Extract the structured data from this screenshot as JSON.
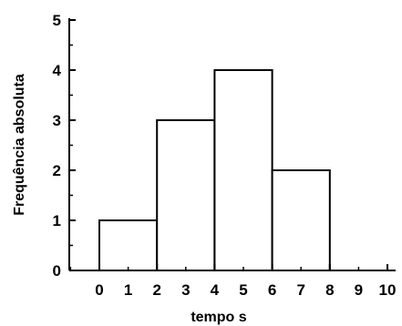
{
  "chart_data": {
    "type": "bar",
    "xlabel": "tempo s",
    "ylabel": "Frequência absoluta",
    "bins": [
      {
        "start": 0,
        "end": 2,
        "value": 1
      },
      {
        "start": 2,
        "end": 4,
        "value": 3
      },
      {
        "start": 4,
        "end": 6,
        "value": 4
      },
      {
        "start": 6,
        "end": 8,
        "value": 2
      }
    ],
    "xlim": [
      -1,
      10
    ],
    "ylim": [
      0,
      5
    ],
    "x_ticks": [
      0,
      1,
      2,
      3,
      4,
      5,
      6,
      7,
      8,
      9,
      10
    ],
    "x_tick_labels": [
      "0",
      "1",
      "2",
      "3",
      "4",
      "5",
      "6",
      "7",
      "8",
      "9",
      "10"
    ],
    "y_ticks": [
      0,
      1,
      2,
      3,
      4,
      5
    ],
    "y_tick_labels": [
      "0",
      "1",
      "2",
      "3",
      "4",
      "5"
    ],
    "bar_fill": "#ffffff",
    "bar_stroke": "#000000",
    "grid": false,
    "legend": "none"
  }
}
